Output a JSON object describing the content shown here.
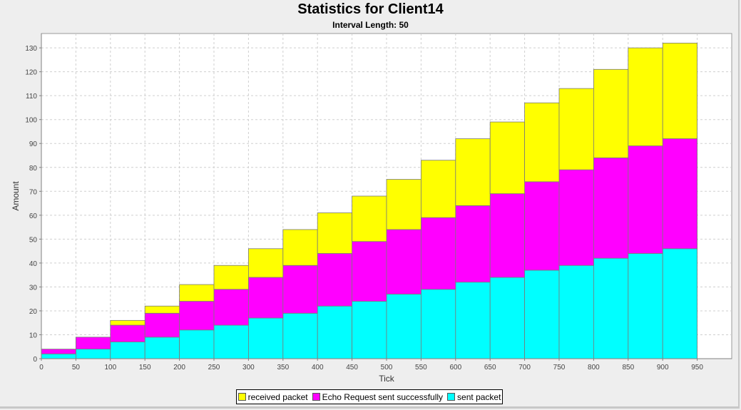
{
  "chart_data": {
    "type": "bar",
    "stacked": true,
    "title": "Statistics for Client14",
    "subtitle": "Interval Length: 50",
    "xlabel": "Tick",
    "ylabel": "Amount",
    "xlim": [
      0,
      1000
    ],
    "ylim": [
      0,
      136
    ],
    "x_ticks": [
      0,
      50,
      100,
      150,
      200,
      250,
      300,
      350,
      400,
      450,
      500,
      550,
      600,
      650,
      700,
      750,
      800,
      850,
      900,
      950
    ],
    "y_ticks": [
      0,
      10,
      20,
      30,
      40,
      50,
      60,
      70,
      80,
      90,
      100,
      110,
      120,
      130
    ],
    "bin_starts": [
      0,
      50,
      100,
      150,
      200,
      250,
      300,
      350,
      400,
      450,
      500,
      550,
      600,
      650,
      700,
      750,
      800,
      850,
      900
    ],
    "bin_width": 50,
    "grid": true,
    "legend_position": "bottom",
    "series": [
      {
        "name": "sent packet",
        "color": "#00ffff",
        "values": [
          2,
          4,
          7,
          9,
          12,
          14,
          17,
          19,
          22,
          24,
          27,
          29,
          32,
          34,
          37,
          39,
          42,
          44,
          46
        ]
      },
      {
        "name": "Echo Request sent successfully",
        "color": "#ff00ff",
        "values": [
          2,
          5,
          7,
          10,
          12,
          15,
          17,
          20,
          22,
          25,
          27,
          30,
          32,
          35,
          37,
          40,
          42,
          45,
          46
        ]
      },
      {
        "name": "received packet",
        "color": "#ffff00",
        "values": [
          0,
          0,
          2,
          3,
          7,
          10,
          12,
          15,
          17,
          19,
          21,
          24,
          28,
          30,
          33,
          34,
          37,
          41,
          40
        ]
      }
    ]
  },
  "legend": {
    "items": [
      {
        "label": "received packet",
        "color": "#ffff00"
      },
      {
        "label": "Echo Request sent successfully",
        "color": "#ff00ff"
      },
      {
        "label": "sent packet",
        "color": "#00ffff"
      }
    ]
  }
}
